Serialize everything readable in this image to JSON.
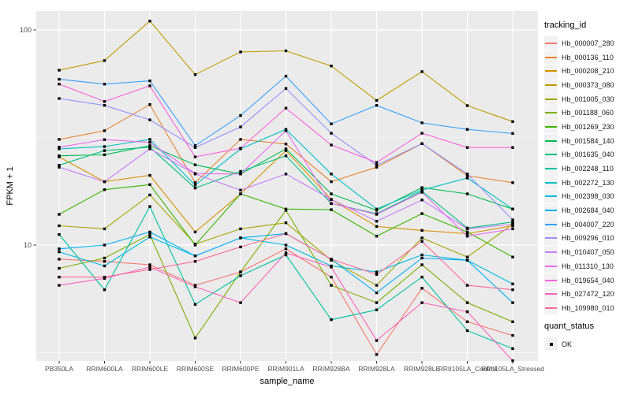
{
  "chart_data": {
    "type": "line",
    "title": "",
    "xlabel": "sample_name",
    "ylabel": "FPKM + 1",
    "y_scale": "log10",
    "ylim": [
      2.9,
      122
    ],
    "grid": true,
    "legend_position": "right",
    "x_categories": [
      "PB350LA",
      "RRIM600LA",
      "RRIM600LE",
      "RRIM600SE",
      "RRIM600PE",
      "RRIM901LA",
      "RRIM928BA",
      "RRIM928LA",
      "RRIM928LE",
      "RRII105LA_Control",
      "RRII105LA_Stressed"
    ],
    "y_ticks": [
      {
        "label": "10",
        "value": 10
      },
      {
        "label": "100",
        "value": 100
      }
    ],
    "y_minor_ticks": [
      3.162,
      31.623
    ],
    "series": [
      {
        "name": "Hb_000007_280",
        "color": "#F8766D",
        "values": [
          8.6,
          8.4,
          8.1,
          6.5,
          7.5,
          9.6,
          7.1,
          3.1,
          6.3,
          4.4,
          3.8
        ]
      },
      {
        "name": "Hb_000136_110",
        "color": "#EA8331",
        "values": [
          31.0,
          34.0,
          45.0,
          19.5,
          31.0,
          29.5,
          19.7,
          23.0,
          29.6,
          21.0,
          19.5
        ]
      },
      {
        "name": "Hb_000208_210",
        "color": "#D89000",
        "values": [
          25.7,
          19.7,
          21.1,
          11.5,
          17.3,
          27.5,
          16.3,
          12.2,
          11.7,
          11.3,
          12.3
        ]
      },
      {
        "name": "Hb_000373_080",
        "color": "#C09B00",
        "values": [
          65.0,
          72.0,
          110.0,
          62.0,
          79.0,
          80.0,
          68.0,
          47.0,
          64.0,
          44.5,
          37.5
        ]
      },
      {
        "name": "Hb_001005_030",
        "color": "#A3A500",
        "values": [
          12.3,
          11.9,
          17.1,
          10.1,
          11.9,
          12.7,
          8.5,
          6.5,
          10.8,
          8.8,
          12.5
        ]
      },
      {
        "name": "Hb_001188_060",
        "color": "#7CAE00",
        "values": [
          7.8,
          8.7,
          11.2,
          3.7,
          7.5,
          14.5,
          6.5,
          5.4,
          8.1,
          5.4,
          4.4
        ]
      },
      {
        "name": "Hb_001269_230",
        "color": "#39B600",
        "values": [
          13.9,
          18.1,
          19.1,
          10.0,
          17.3,
          14.7,
          14.6,
          11.0,
          14.0,
          11.5,
          8.8
        ]
      },
      {
        "name": "Hb_001584_140",
        "color": "#00BB4E",
        "values": [
          26.0,
          26.3,
          29.0,
          23.6,
          21.4,
          28.0,
          17.3,
          14.5,
          18.5,
          17.3,
          14.7
        ]
      },
      {
        "name": "Hb_001635_040",
        "color": "#00BF7D",
        "values": [
          23.5,
          27.5,
          28.5,
          18.4,
          22.0,
          26.0,
          15.6,
          14.0,
          17.8,
          12.0,
          12.8
        ]
      },
      {
        "name": "Hb_002248_110",
        "color": "#00C1A3",
        "values": [
          11.2,
          6.2,
          15.1,
          5.3,
          7.2,
          9.0,
          4.5,
          5.0,
          7.1,
          4.0,
          3.3
        ]
      },
      {
        "name": "Hb_002272_130",
        "color": "#00BFC4",
        "values": [
          28.0,
          28.7,
          31.0,
          19.0,
          28.0,
          34.5,
          21.4,
          14.7,
          18.0,
          20.5,
          14.7
        ]
      },
      {
        "name": "Hb_002398_030",
        "color": "#00BAE0",
        "values": [
          9.3,
          8.0,
          10.9,
          8.9,
          10.8,
          10.0,
          8.0,
          7.5,
          9.0,
          8.5,
          6.6
        ]
      },
      {
        "name": "Hb_002684_040",
        "color": "#00B0F6",
        "values": [
          9.6,
          10.0,
          11.5,
          8.9,
          10.8,
          11.3,
          8.6,
          6.0,
          8.7,
          8.5,
          5.4
        ]
      },
      {
        "name": "Hb_004007_220",
        "color": "#35A2FF",
        "values": [
          59.0,
          56.0,
          58.0,
          29.0,
          40.0,
          61.0,
          36.6,
          44.6,
          37.0,
          34.5,
          33.0
        ]
      },
      {
        "name": "Hb_009296_010",
        "color": "#9590FF",
        "values": [
          48.0,
          44.6,
          38.2,
          28.4,
          35.4,
          53.5,
          33.1,
          23.5,
          29.6,
          21.4,
          13.1
        ]
      },
      {
        "name": "Hb_010407_050",
        "color": "#C77CFF",
        "values": [
          23.0,
          19.7,
          28.0,
          21.4,
          18.0,
          21.4,
          16.3,
          12.9,
          16.2,
          11.9,
          12.5
        ]
      },
      {
        "name": "Hb_011310_130",
        "color": "#E76BF3",
        "values": [
          28.5,
          30.9,
          30.0,
          21.5,
          21.4,
          34.0,
          15.6,
          13.9,
          17.6,
          11.0,
          11.9
        ]
      },
      {
        "name": "Hb_019654_040",
        "color": "#FA62DB",
        "values": [
          56.0,
          46.5,
          55.0,
          25.7,
          28.2,
          43.3,
          29.2,
          24.2,
          33.1,
          28.4,
          28.4
        ]
      },
      {
        "name": "Hb_027472_120",
        "color": "#FF62BC",
        "values": [
          6.5,
          7.0,
          7.9,
          6.4,
          5.4,
          9.2,
          7.9,
          3.6,
          5.4,
          4.9,
          2.9
        ]
      },
      {
        "name": "Hb_109980_010",
        "color": "#FF6A98",
        "values": [
          7.1,
          7.1,
          7.7,
          8.4,
          9.8,
          11.3,
          8.6,
          7.3,
          10.4,
          6.5,
          6.2
        ]
      }
    ],
    "marker": {
      "shape": "square",
      "label": "OK"
    }
  },
  "legend": {
    "tracking_title": "tracking_id",
    "quant_title": "quant_status",
    "quant_ok_label": "OK"
  },
  "colors": {
    "panel_background": "#EBEBEB",
    "grid": "#FFFFFF",
    "axis_text": "#4D4D4D",
    "title_text": "#000000",
    "marker": "#000000",
    "tick": "#333333",
    "legend_key_background": "#F2F2F2"
  }
}
